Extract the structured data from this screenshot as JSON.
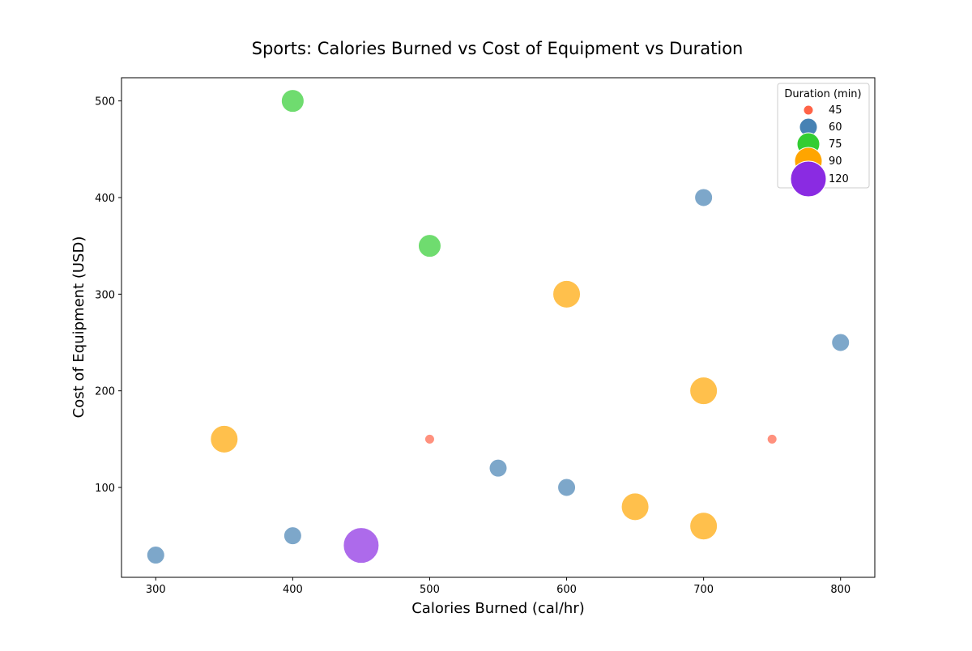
{
  "chart_data": {
    "type": "scatter",
    "title": "Sports: Calories Burned vs Cost of Equipment vs Duration",
    "xlabel": "Calories Burned (cal/hr)",
    "ylabel": "Cost of Equipment (USD)",
    "xlim": [
      275,
      825
    ],
    "ylim": [
      7,
      524
    ],
    "xticks": [
      300,
      400,
      500,
      600,
      700,
      800
    ],
    "yticks": [
      100,
      200,
      300,
      400,
      500
    ],
    "grid": false,
    "legend": {
      "title": "Duration (min)",
      "placement": "top-right",
      "entries": [
        {
          "label": "45",
          "duration": 45,
          "color": "#ff6347"
        },
        {
          "label": "60",
          "duration": 60,
          "color": "#4682b4"
        },
        {
          "label": "75",
          "duration": 75,
          "color": "#32cd32"
        },
        {
          "label": "90",
          "duration": 90,
          "color": "#ffa500"
        },
        {
          "label": "120",
          "duration": 120,
          "color": "#8a2be2"
        }
      ]
    },
    "points": [
      {
        "x": 400,
        "y": 500,
        "duration": 75
      },
      {
        "x": 700,
        "y": 400,
        "duration": 60
      },
      {
        "x": 500,
        "y": 350,
        "duration": 75
      },
      {
        "x": 600,
        "y": 300,
        "duration": 90
      },
      {
        "x": 800,
        "y": 250,
        "duration": 60
      },
      {
        "x": 700,
        "y": 200,
        "duration": 90
      },
      {
        "x": 350,
        "y": 150,
        "duration": 90
      },
      {
        "x": 500,
        "y": 150,
        "duration": 45
      },
      {
        "x": 750,
        "y": 150,
        "duration": 45
      },
      {
        "x": 550,
        "y": 120,
        "duration": 60
      },
      {
        "x": 600,
        "y": 100,
        "duration": 60
      },
      {
        "x": 650,
        "y": 80,
        "duration": 90
      },
      {
        "x": 700,
        "y": 60,
        "duration": 90
      },
      {
        "x": 400,
        "y": 50,
        "duration": 60
      },
      {
        "x": 450,
        "y": 40,
        "duration": 120
      },
      {
        "x": 300,
        "y": 30,
        "duration": 60
      }
    ]
  }
}
